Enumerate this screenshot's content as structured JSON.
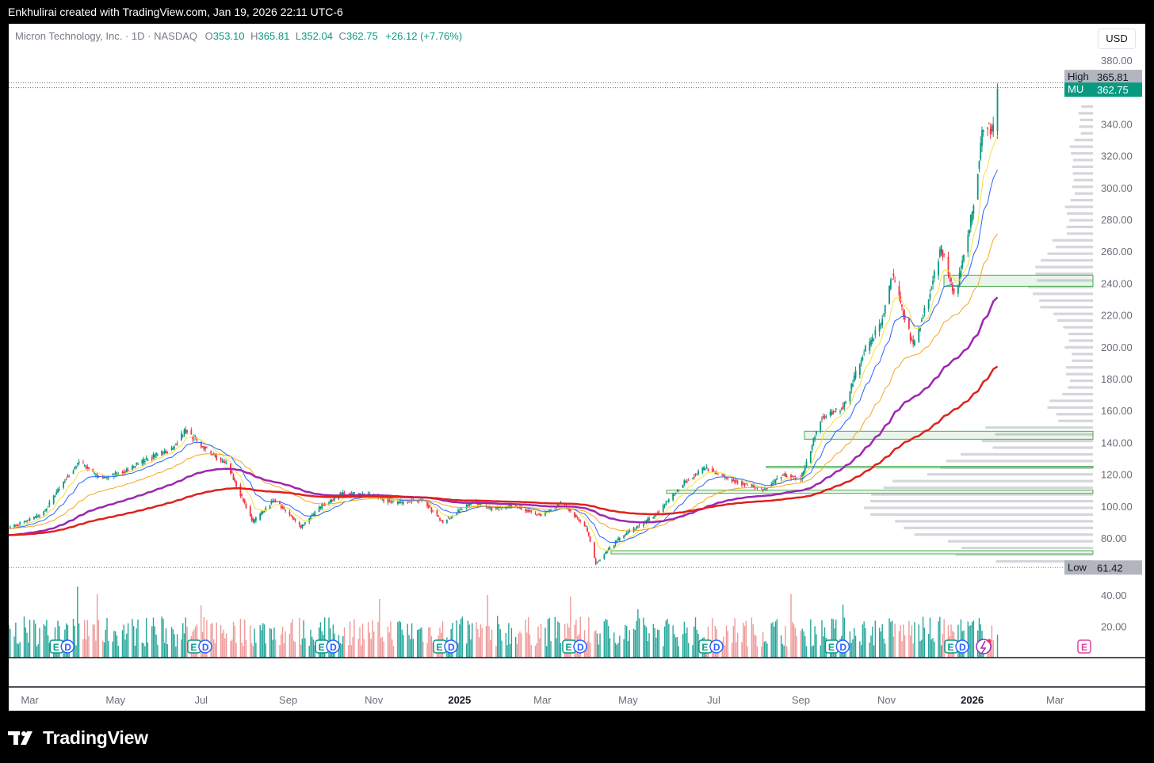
{
  "header": {
    "credit": "Enkhulirai created with TradingView.com, Jan 19, 2026 22:11 UTC-6"
  },
  "legend": {
    "symbol": "Micron Technology, Inc. · 1D · NASDAQ",
    "o_label": "O",
    "o": "353.10",
    "h_label": "H",
    "h": "365.81",
    "l_label": "L",
    "l": "352.04",
    "c_label": "C",
    "c": "362.75",
    "change": "+26.12 (+7.76%)"
  },
  "currency_button": "USD",
  "footer": {
    "brand": "TradingView"
  },
  "colors": {
    "up": "#089981",
    "down": "#f23645",
    "vol_up": "#26a69a",
    "vol_down": "#ef9a9a",
    "ema10": "#f7e03c",
    "ema20": "#2962ff",
    "ema50": "#f5a623",
    "ema100": "#9c27b0",
    "ema200": "#e0201e",
    "zone": "#4caf50",
    "profile": "#b2b5be"
  },
  "chart_data": {
    "type": "candlestick",
    "symbol": "MU",
    "interval": "1D",
    "price_axis": {
      "range": [
        60,
        382
      ],
      "ticks": [
        80,
        100,
        120,
        140,
        160,
        180,
        200,
        220,
        240,
        260,
        280,
        300,
        320,
        340,
        380
      ],
      "tick_labels": [
        "80.00",
        "100.00",
        "120.00",
        "140.00",
        "160.00",
        "180.00",
        "200.00",
        "220.00",
        "240.00",
        "260.00",
        "280.00",
        "300.00",
        "320.00",
        "340.00",
        "380.00"
      ]
    },
    "volume_axis": {
      "ticks": [
        20,
        40
      ],
      "tick_labels": [
        "20.00",
        "40.00"
      ]
    },
    "time_axis": {
      "labels": [
        "Mar",
        "May",
        "Jul",
        "Sep",
        "Nov",
        "2025",
        "Mar",
        "May",
        "Jul",
        "Sep",
        "Nov",
        "2026",
        "Mar"
      ],
      "bold": [
        "2025",
        "2026"
      ],
      "label_dates": [
        "2024-03-01",
        "2024-05-01",
        "2024-07-01",
        "2024-09-01",
        "2024-11-01",
        "2025-01-01",
        "2025-03-01",
        "2025-05-01",
        "2025-07-01",
        "2025-09-01",
        "2025-11-01",
        "2026-01-01",
        "2026-03-01"
      ],
      "range": [
        "2024-02-15",
        "2026-03-28"
      ]
    },
    "high_marker": {
      "label": "High",
      "value": "365.81"
    },
    "low_marker": {
      "label": "Low",
      "value": "61.42"
    },
    "last_price": {
      "label": "MU",
      "value": "362.75"
    },
    "price_path": [
      [
        "2024-02-15",
        86
      ],
      [
        "2024-03-10",
        95
      ],
      [
        "2024-03-25",
        115
      ],
      [
        "2024-04-05",
        128
      ],
      [
        "2024-04-20",
        117
      ],
      [
        "2024-05-08",
        122
      ],
      [
        "2024-05-25",
        130
      ],
      [
        "2024-06-10",
        136
      ],
      [
        "2024-06-20",
        148
      ],
      [
        "2024-07-01",
        138
      ],
      [
        "2024-07-20",
        125
      ],
      [
        "2024-08-07",
        90
      ],
      [
        "2024-08-22",
        104
      ],
      [
        "2024-09-10",
        87
      ],
      [
        "2024-09-25",
        100
      ],
      [
        "2024-10-10",
        108
      ],
      [
        "2024-10-30",
        107
      ],
      [
        "2024-11-15",
        102
      ],
      [
        "2024-12-05",
        104
      ],
      [
        "2024-12-20",
        90
      ],
      [
        "2025-01-10",
        103
      ],
      [
        "2025-01-25",
        98
      ],
      [
        "2025-02-10",
        100
      ],
      [
        "2025-02-28",
        94
      ],
      [
        "2025-03-15",
        102
      ],
      [
        "2025-04-01",
        87
      ],
      [
        "2025-04-08",
        64
      ],
      [
        "2025-04-25",
        80
      ],
      [
        "2025-05-20",
        94
      ],
      [
        "2025-06-10",
        115
      ],
      [
        "2025-06-25",
        124
      ],
      [
        "2025-07-15",
        116
      ],
      [
        "2025-08-05",
        110
      ],
      [
        "2025-08-20",
        120
      ],
      [
        "2025-09-01",
        117
      ],
      [
        "2025-09-15",
        155
      ],
      [
        "2025-10-01",
        162
      ],
      [
        "2025-10-15",
        195
      ],
      [
        "2025-10-28",
        215
      ],
      [
        "2025-11-05",
        245
      ],
      [
        "2025-11-20",
        200
      ],
      [
        "2025-12-01",
        232
      ],
      [
        "2025-12-10",
        262
      ],
      [
        "2025-12-20",
        230
      ],
      [
        "2026-01-01",
        285
      ],
      [
        "2026-01-09",
        340
      ],
      [
        "2026-01-16",
        336
      ],
      [
        "2026-01-19",
        362.75
      ]
    ],
    "moving_averages": [
      {
        "name": "EMA10",
        "color": "#f7e03c"
      },
      {
        "name": "EMA20",
        "color": "#2962ff"
      },
      {
        "name": "EMA50",
        "color": "#f5a623"
      },
      {
        "name": "EMA100",
        "color": "#9c27b0"
      },
      {
        "name": "EMA200",
        "color": "#e0201e"
      }
    ],
    "zones": [
      {
        "from": 238,
        "to": 245
      },
      {
        "from": 142,
        "to": 147
      },
      {
        "from": 124,
        "to": 125
      },
      {
        "from": 108,
        "to": 110
      },
      {
        "from": 70,
        "to": 72
      }
    ],
    "earnings_dates": [
      "2024-03-20",
      "2024-06-26",
      "2024-09-25",
      "2024-12-18",
      "2025-03-20",
      "2025-06-25",
      "2025-09-23",
      "2025-12-17"
    ],
    "earnings_labels": {
      "e": "E",
      "d": "D"
    },
    "grid": false
  }
}
